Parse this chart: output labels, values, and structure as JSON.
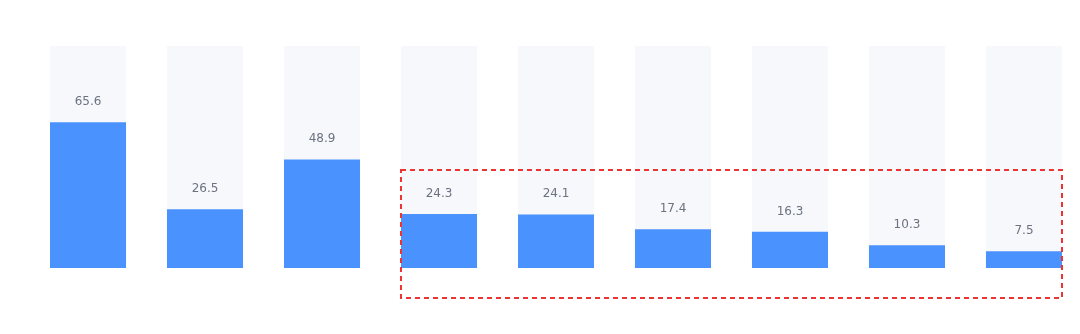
{
  "chart_data": {
    "type": "bar",
    "categories": [
      null,
      null,
      null,
      null,
      null,
      null,
      null,
      null,
      null
    ],
    "series": [
      {
        "color": "#4a93ff",
        "values": [
          65.6,
          26.5,
          48.9,
          24.3,
          24.1,
          17.4,
          16.3,
          10.3,
          7.5
        ]
      }
    ],
    "ylim": [
      0,
      100
    ],
    "data_labels": true
  }
}
